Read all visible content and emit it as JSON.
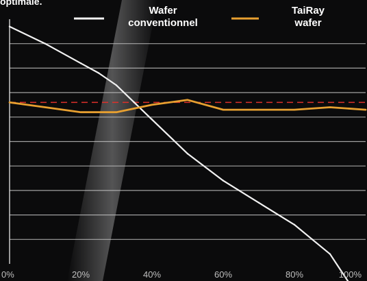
{
  "header": {
    "corner_text": "optimale."
  },
  "chart_data": {
    "type": "line",
    "title": "",
    "xlabel": "",
    "ylabel": "",
    "xlim": [
      0,
      100
    ],
    "ylim": [
      0,
      10
    ],
    "x_ticks": [
      "0%",
      "20%",
      "40%",
      "60%",
      "80%",
      "100%"
    ],
    "grid": true,
    "legend_position": "top",
    "series": [
      {
        "name": "Wafer conventionnel",
        "color": "#f2f2f2",
        "x": [
          0,
          10,
          20,
          25,
          30,
          35,
          40,
          50,
          60,
          70,
          80,
          85,
          90,
          95
        ],
        "y": [
          9.7,
          9.0,
          8.2,
          7.8,
          7.3,
          6.6,
          5.9,
          4.5,
          3.4,
          2.5,
          1.6,
          1.0,
          0.4,
          -0.7
        ]
      },
      {
        "name": "TaiRay wafer",
        "color": "#e8a030",
        "x": [
          0,
          10,
          20,
          30,
          40,
          50,
          60,
          70,
          80,
          90,
          100
        ],
        "y": [
          6.6,
          6.4,
          6.2,
          6.2,
          6.5,
          6.7,
          6.3,
          6.3,
          6.3,
          6.4,
          6.3
        ]
      }
    ],
    "reference_line": {
      "y": 6.6,
      "color": "#e0302a",
      "style": "dashed"
    }
  }
}
